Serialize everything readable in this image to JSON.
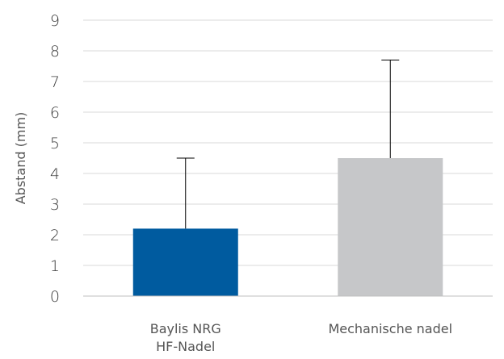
{
  "chart_data": {
    "type": "bar",
    "title": "",
    "xlabel": "",
    "ylabel": "Abstand (mm)",
    "ylim": [
      0,
      9
    ],
    "yticks": [
      0,
      1,
      2,
      3,
      4,
      5,
      6,
      7,
      8,
      9
    ],
    "grid": true,
    "categories": [
      [
        "Baylis NRG",
        "HF-Nadel"
      ],
      [
        "Mechanische nadel"
      ]
    ],
    "values": [
      2.2,
      4.5
    ],
    "error_upper": [
      4.5,
      7.7
    ],
    "colors": [
      "#005b9f",
      "#c6c7c9"
    ],
    "gridline_color": "#d9d9d9",
    "error_bar_color": "#000000"
  }
}
